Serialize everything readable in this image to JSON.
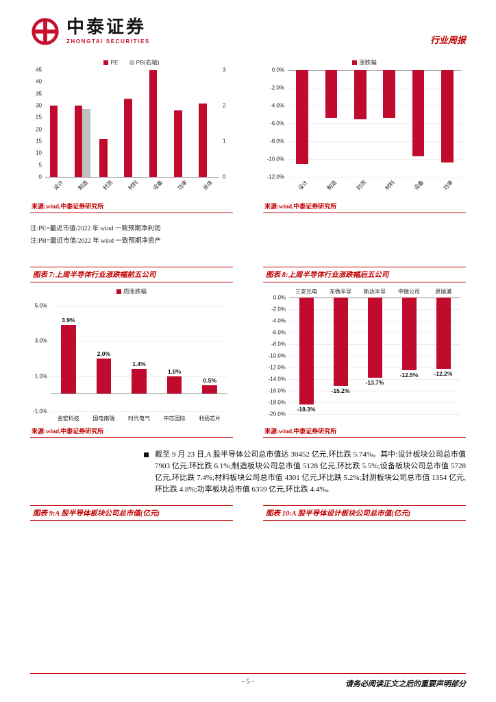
{
  "header": {
    "brand_cn": "中泰证券",
    "brand_en": "ZHONGTAI SECURITIES",
    "doc_type": "行业周报"
  },
  "source_note": "来源:wind,中泰证券研究所",
  "notes": [
    "注:PE=最近市值/2022 年 wind 一致预期净利润",
    "注:PB=最近市值/2022 年 wind 一致预期净资产"
  ],
  "figures": {
    "f7": "图表 7:上周半导体行业涨跌幅前五公司",
    "f8": "图表 8:上周半导体行业涨跌幅后五公司",
    "f9": "图表 9:A 股半导体板块公司总市值(亿元)",
    "f10": "图表 10:A 股半导体设计板块公司总市值(亿元)"
  },
  "summary": "截至 9 月 23 日,A 股半导体公司总市值达 30452 亿元,环比跌 5.74%。其中:设计板块公司总市值 7903 亿元,环比跌 6.1%;制造板块公司总市值 5128 亿元,环比跌 5.5%;设备板块公司总市值 5728 亿元,环比跌 7.4%;材料板块公司总市值 4301 亿元,环比跌 5.2%;封测板块公司总市值 1354 亿元,环比跌 4.8%;功率板块总市值 6359 亿元,环比跌 4.4%。",
  "page": {
    "number": "- 5 -",
    "disclaimer": "请务必阅读正文之后的重要声明部分"
  },
  "accent_color": "#C00000",
  "chart_data": [
    {
      "id": "pe-pb",
      "type": "bar",
      "categories": [
        "设计",
        "制造",
        "封测",
        "材料",
        "设备",
        "功率",
        "总体"
      ],
      "series": [
        {
          "name": "PE",
          "color": "#C00A2E",
          "values": [
            30,
            30,
            16,
            33,
            45,
            28,
            31
          ]
        },
        {
          "name": "PB(右轴)",
          "color": "#BFBFBF",
          "axis": "right",
          "values": [
            null,
            1.9,
            null,
            null,
            null,
            null,
            null
          ]
        }
      ],
      "ylim": [
        0,
        45
      ],
      "yticks": [
        {
          "v": 45,
          "label": "45"
        },
        {
          "v": 40,
          "label": "40"
        },
        {
          "v": 35,
          "label": "35"
        },
        {
          "v": 30,
          "label": "30"
        },
        {
          "v": 25,
          "label": "25"
        },
        {
          "v": 20,
          "label": "20"
        },
        {
          "v": 15,
          "label": "15"
        },
        {
          "v": 10,
          "label": "10"
        },
        {
          "v": 5,
          "label": "5"
        },
        {
          "v": 0,
          "label": "0"
        }
      ],
      "ylim_right": [
        0,
        3
      ],
      "yticks_right": [
        {
          "v": 3,
          "label": "3"
        },
        {
          "v": 2,
          "label": "2"
        },
        {
          "v": 1,
          "label": "1"
        },
        {
          "v": 0,
          "label": "0"
        }
      ],
      "rotate_cats": true,
      "grid": false
    },
    {
      "id": "sector-weekly-change",
      "type": "bar",
      "legend": "涨跌幅",
      "color": "#C00A2E",
      "categories": [
        "设计",
        "制造",
        "封测",
        "材料",
        "设备",
        "功率"
      ],
      "values": [
        -10.5,
        -5.4,
        -5.5,
        -5.4,
        -9.7,
        -10.4
      ],
      "ylim": [
        -12,
        0
      ],
      "yticks": [
        {
          "v": 0,
          "label": "0.0%"
        },
        {
          "v": -2,
          "label": "-2.0%"
        },
        {
          "v": -4,
          "label": "-4.0%"
        },
        {
          "v": -6,
          "label": "-6.0%"
        },
        {
          "v": -8,
          "label": "-8.0%"
        },
        {
          "v": -10,
          "label": "-10.0%"
        },
        {
          "v": -12,
          "label": "-12.0%"
        }
      ],
      "rotate_cats": true,
      "grid": true
    },
    {
      "id": "top5-gainers",
      "type": "bar",
      "legend": "周涨跌幅",
      "color": "#C00A2E",
      "categories": [
        "金宏科技",
        "国电南瑞",
        "时代电气",
        "中芯国际",
        "利扬芯片"
      ],
      "values": [
        3.9,
        2.0,
        1.4,
        1.0,
        0.5
      ],
      "labels": [
        "3.9%",
        "2.0%",
        "1.4%",
        "1.0%",
        "0.5%"
      ],
      "value_labels": "above",
      "ylim": [
        -1,
        5
      ],
      "yticks": [
        {
          "v": 5,
          "label": "5.0%"
        },
        {
          "v": 3,
          "label": "3.0%"
        },
        {
          "v": 1,
          "label": "1.0%"
        },
        {
          "v": -1,
          "label": "-1.0%"
        }
      ],
      "grid": true
    },
    {
      "id": "bottom5-losers",
      "type": "bar",
      "color": "#C00A2E",
      "categories": [
        "三安光电",
        "东微半导",
        "斯达半导",
        "中微公司",
        "思瑞浦"
      ],
      "values": [
        -18.3,
        -15.2,
        -13.7,
        -12.5,
        -12.2
      ],
      "labels": [
        "-18.3%",
        "-15.2%",
        "-13.7%",
        "-12.5%",
        "-12.2%"
      ],
      "value_labels": "below",
      "cats_top": true,
      "ylim": [
        -20,
        0
      ],
      "yticks": [
        {
          "v": 0,
          "label": "0.0%"
        },
        {
          "v": -2,
          "label": "-2.0%"
        },
        {
          "v": -4,
          "label": "-4.0%"
        },
        {
          "v": -6,
          "label": "-6.0%"
        },
        {
          "v": -8,
          "label": "-8.0%"
        },
        {
          "v": -10,
          "label": "-10.0%"
        },
        {
          "v": -12,
          "label": "-12.0%"
        },
        {
          "v": -14,
          "label": "-14.0%"
        },
        {
          "v": -16,
          "label": "-16.0%"
        },
        {
          "v": -18,
          "label": "-18.0%"
        },
        {
          "v": -20,
          "label": "-20.0%"
        }
      ],
      "grid": true
    }
  ]
}
